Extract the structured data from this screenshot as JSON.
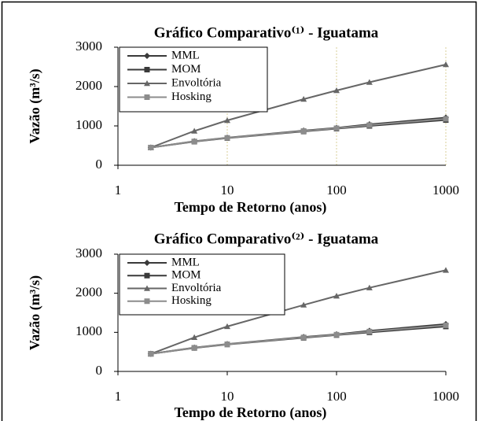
{
  "chart_data": [
    {
      "type": "line",
      "title": "Gráfico Comparativo⁽¹⁾ - Iguatama",
      "ylabel": "Vazão (m³/s)",
      "xlabel": "Tempo de Retorno (anos)",
      "x": [
        2,
        5,
        10,
        50,
        100,
        200,
        1000
      ],
      "xlog": true,
      "xlim": [
        1,
        1000
      ],
      "xticks": [
        1,
        10,
        100,
        1000
      ],
      "ylim": [
        0,
        3000
      ],
      "yticks": [
        0,
        1000,
        2000,
        3000
      ],
      "grid": true,
      "legend": "upper left",
      "series": [
        {
          "name": "MML",
          "color": "#3a3a3a",
          "marker": "diamond",
          "values": [
            450,
            610,
            700,
            880,
            950,
            1040,
            1210
          ]
        },
        {
          "name": "MOM",
          "color": "#3a3a3a",
          "marker": "square",
          "values": [
            450,
            600,
            690,
            860,
            930,
            1000,
            1150
          ]
        },
        {
          "name": "Envoltória",
          "color": "#666666",
          "marker": "triangle",
          "values": [
            450,
            870,
            1140,
            1680,
            1900,
            2110,
            2560
          ]
        },
        {
          "name": "Hosking",
          "color": "#8c8c8c",
          "marker": "square",
          "values": [
            450,
            605,
            695,
            870,
            940,
            1020,
            1180
          ]
        }
      ]
    },
    {
      "type": "line",
      "title": "Gráfico Comparativo⁽²⁾ - Iguatama",
      "ylabel": "Vazão (m³/s)",
      "xlabel": "Tempo de Retorno (anos)",
      "x": [
        2,
        5,
        10,
        50,
        100,
        200,
        1000
      ],
      "xlog": true,
      "xlim": [
        1,
        1000
      ],
      "xticks": [
        1,
        10,
        100,
        1000
      ],
      "ylim": [
        0,
        3000
      ],
      "yticks": [
        0,
        1000,
        2000,
        3000
      ],
      "grid": false,
      "legend": "upper left",
      "series": [
        {
          "name": "MML",
          "color": "#3a3a3a",
          "marker": "diamond",
          "values": [
            450,
            610,
            700,
            880,
            950,
            1040,
            1210
          ]
        },
        {
          "name": "MOM",
          "color": "#3a3a3a",
          "marker": "square",
          "values": [
            450,
            600,
            690,
            860,
            930,
            1000,
            1150
          ]
        },
        {
          "name": "Envoltória",
          "color": "#666666",
          "marker": "triangle",
          "values": [
            450,
            870,
            1150,
            1700,
            1930,
            2140,
            2590
          ]
        },
        {
          "name": "Hosking",
          "color": "#8c8c8c",
          "marker": "square",
          "values": [
            450,
            605,
            695,
            870,
            940,
            1020,
            1180
          ]
        }
      ]
    }
  ]
}
